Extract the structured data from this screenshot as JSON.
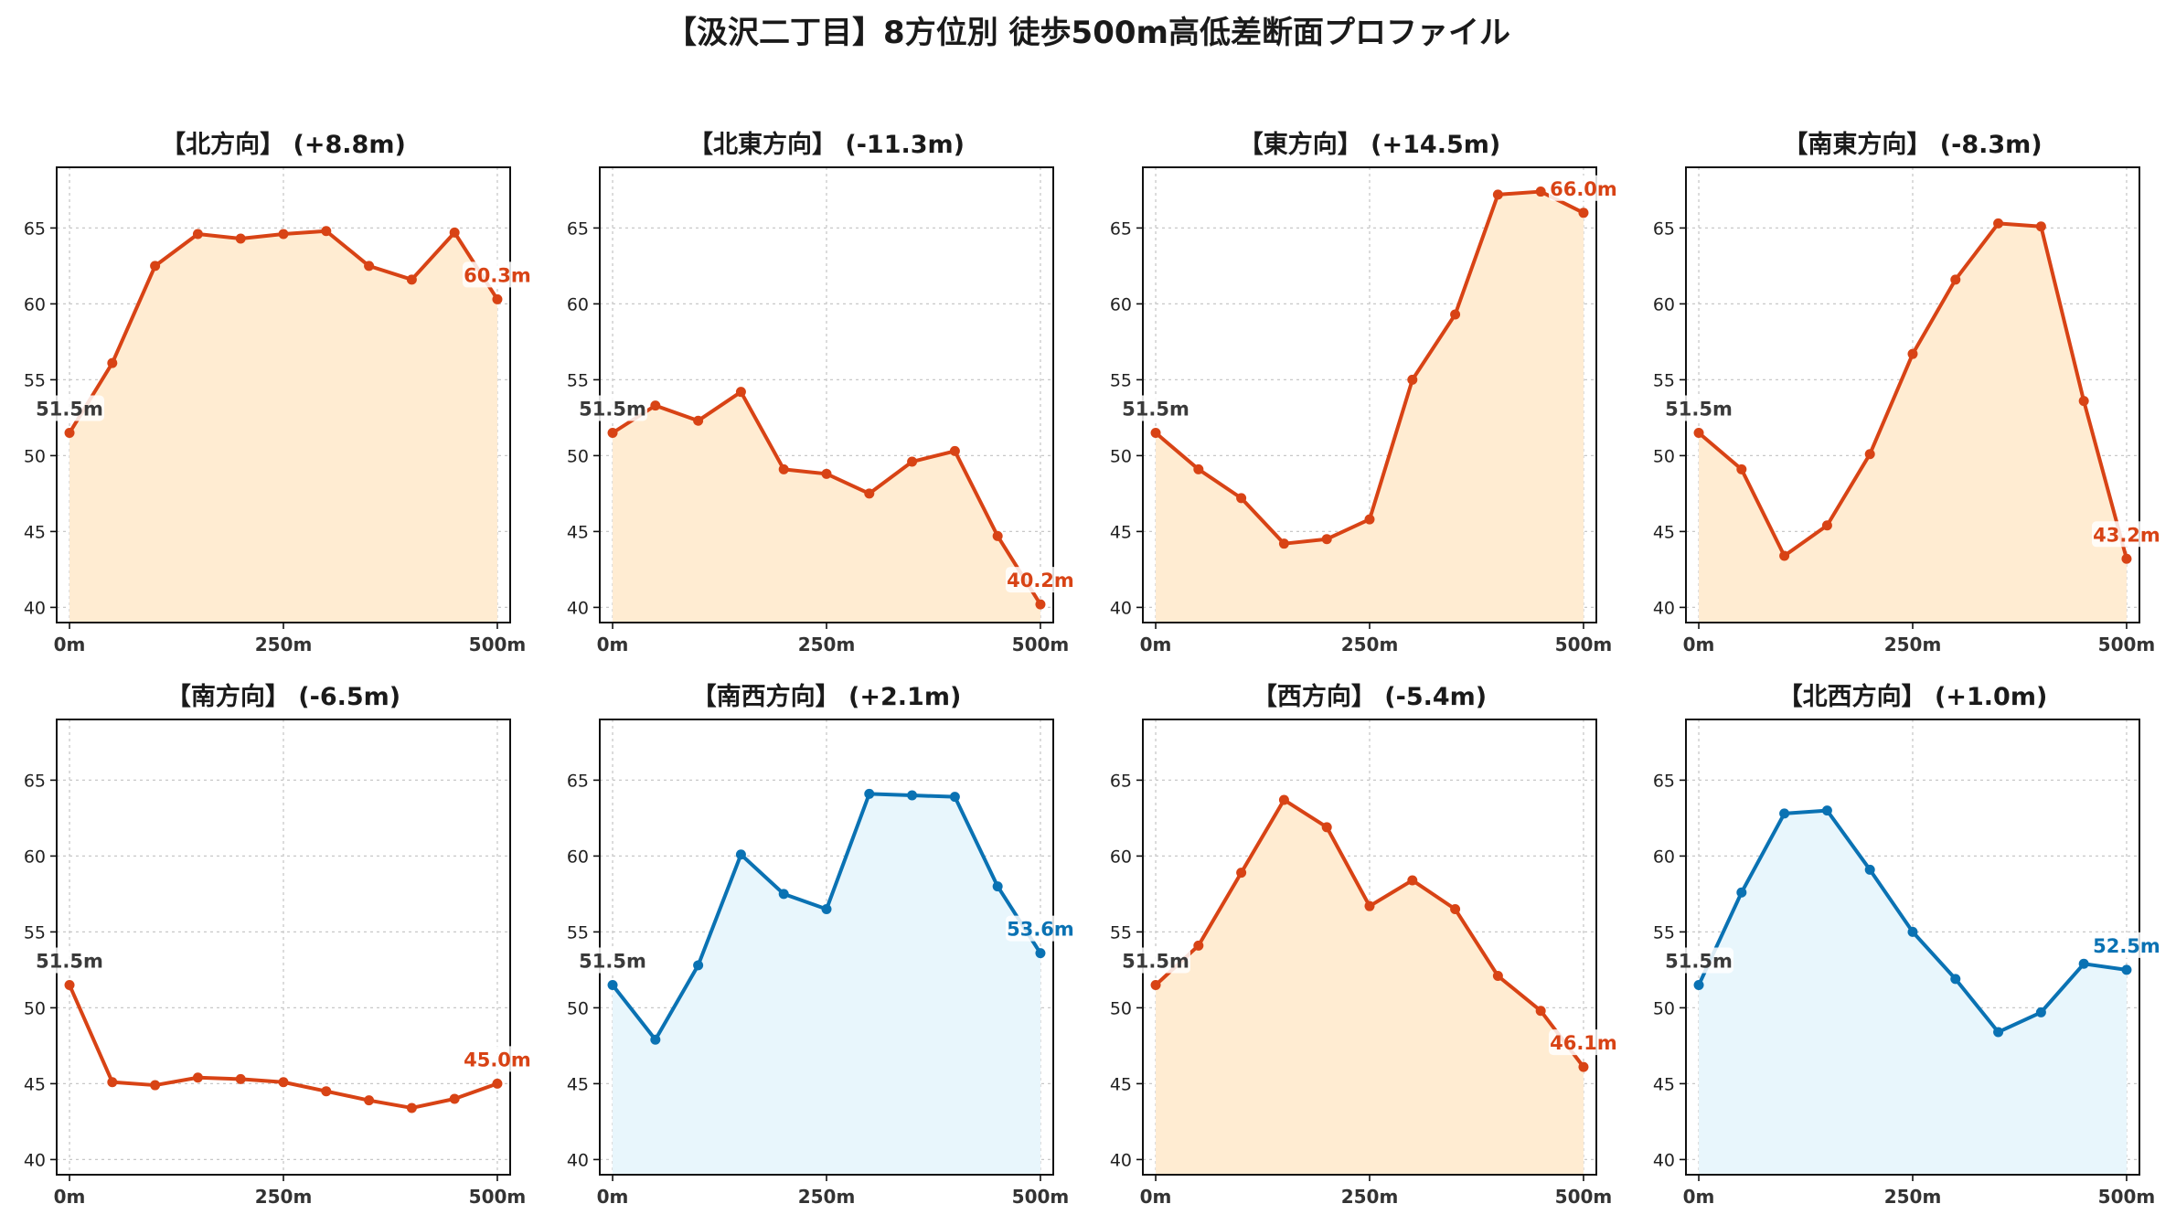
{
  "title": "【汲沢二丁目】8方位別 徒歩500m高低差断面プロファイル",
  "colors": {
    "up_line": "#d84315",
    "up_fill": "#ffecd2",
    "down_line": "#0a72b3",
    "down_fill": "#e8f6fc",
    "start_label": "#3a3a3a"
  },
  "chart_data": {
    "type": "area",
    "x": [
      0,
      50,
      100,
      150,
      200,
      250,
      300,
      350,
      400,
      450,
      500
    ],
    "xticks": [
      0,
      250,
      500
    ],
    "xtick_labels": [
      "0m",
      "250m",
      "500m"
    ],
    "xlim": [
      -15,
      515
    ],
    "ylim": [
      39,
      69
    ],
    "yticks": [
      40,
      45,
      50,
      55,
      60,
      65
    ],
    "grid": true,
    "start_label": "51.5m",
    "panels": [
      {
        "title": "【北方向】 (+8.8m)",
        "color": "up",
        "y": [
          51.5,
          56.1,
          62.5,
          64.6,
          64.3,
          64.6,
          64.8,
          62.5,
          61.6,
          64.7,
          60.3
        ],
        "end_label": "60.3m"
      },
      {
        "title": "【北東方向】 (-11.3m)",
        "color": "up",
        "y": [
          51.5,
          53.3,
          52.3,
          54.2,
          49.1,
          48.8,
          47.5,
          49.6,
          50.3,
          44.7,
          40.2
        ],
        "end_label": "40.2m"
      },
      {
        "title": "【東方向】 (+14.5m)",
        "color": "up",
        "y": [
          51.5,
          49.1,
          47.2,
          44.2,
          44.5,
          45.8,
          55.0,
          59.3,
          67.2,
          67.4,
          66.0
        ],
        "end_label": "66.0m"
      },
      {
        "title": "【南東方向】 (-8.3m)",
        "color": "up",
        "y": [
          51.5,
          49.1,
          43.4,
          45.4,
          50.1,
          56.7,
          61.6,
          65.3,
          65.1,
          53.6,
          43.2
        ],
        "end_label": "43.2m"
      },
      {
        "title": "【南方向】 (-6.5m)",
        "color": "up",
        "fill": false,
        "y": [
          51.5,
          45.1,
          44.9,
          45.4,
          45.3,
          45.1,
          44.5,
          43.9,
          43.4,
          44.0,
          45.0
        ],
        "end_label": "45.0m"
      },
      {
        "title": "【南西方向】 (+2.1m)",
        "color": "down",
        "y": [
          51.5,
          47.9,
          52.8,
          60.1,
          57.5,
          56.5,
          64.1,
          64.0,
          63.9,
          58.0,
          53.6
        ],
        "end_label": "53.6m"
      },
      {
        "title": "【西方向】 (-5.4m)",
        "color": "up",
        "y": [
          51.5,
          54.1,
          58.9,
          63.7,
          61.9,
          56.7,
          58.4,
          56.5,
          52.1,
          49.8,
          46.1
        ],
        "end_label": "46.1m"
      },
      {
        "title": "【北西方向】 (+1.0m)",
        "color": "down",
        "y": [
          51.5,
          57.6,
          62.8,
          63.0,
          59.1,
          55.0,
          51.9,
          48.4,
          49.7,
          52.9,
          52.5
        ],
        "end_label": "52.5m"
      }
    ]
  }
}
